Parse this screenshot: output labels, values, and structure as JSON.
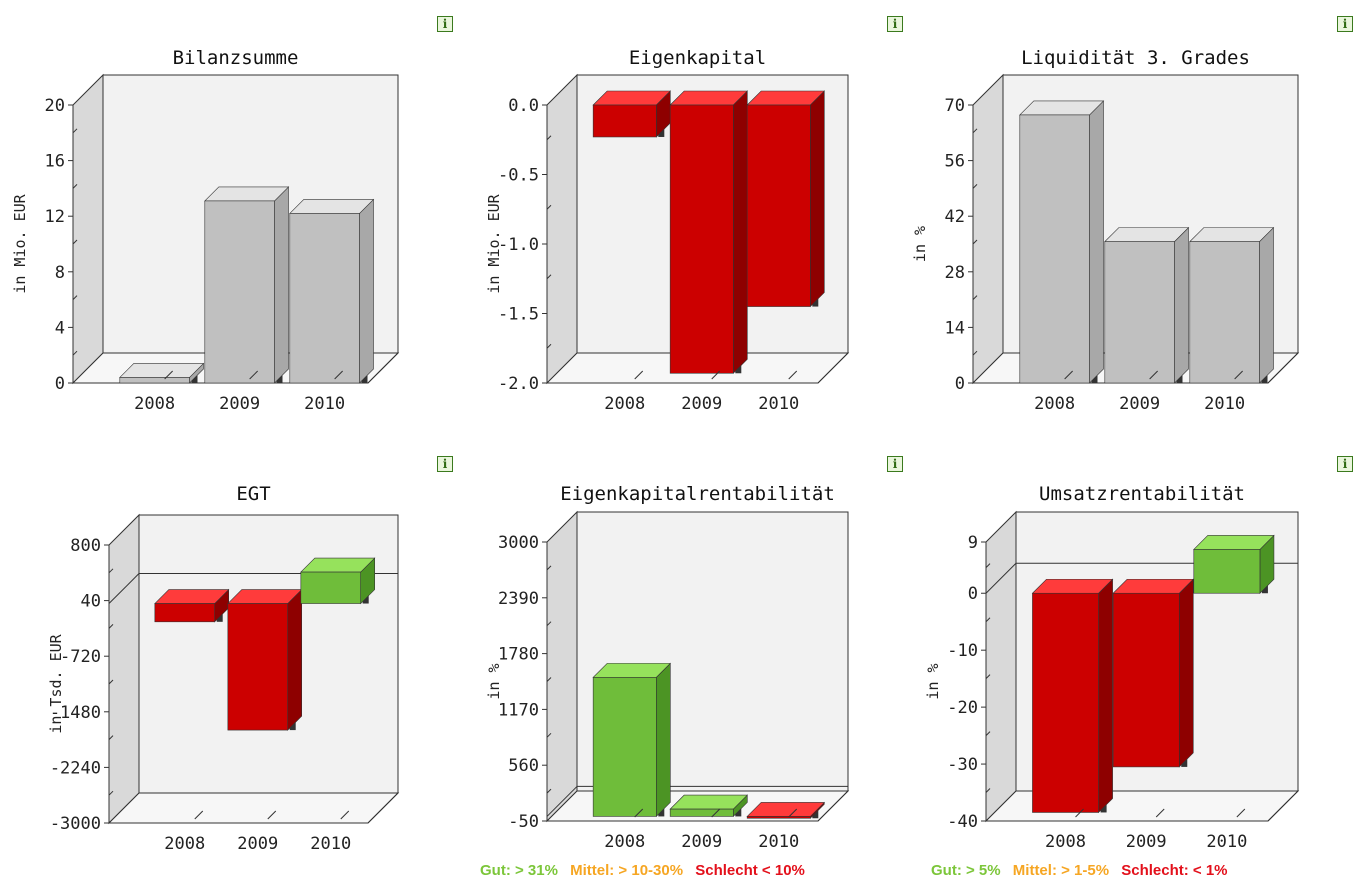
{
  "chart_data": [
    {
      "type": "bar",
      "title": "Bilanzsumme",
      "ylabel": "in Mio. EUR",
      "categories": [
        "2008",
        "2009",
        "2010"
      ],
      "values": [
        0.4,
        13.1,
        12.2
      ],
      "ylim": [
        0,
        20
      ],
      "yticks": [
        0,
        4,
        8,
        12,
        16,
        20
      ],
      "ytick_labels": [
        "0",
        "4",
        "8",
        "12",
        "16",
        "20"
      ],
      "bar_colors": [
        "gray",
        "gray",
        "gray"
      ]
    },
    {
      "type": "bar",
      "title": "Eigenkapital",
      "ylabel": "in Mio. EUR",
      "categories": [
        "2008",
        "2009",
        "2010"
      ],
      "values": [
        -0.23,
        -1.93,
        -1.45
      ],
      "ylim": [
        -2.0,
        0.0
      ],
      "yticks": [
        -2.0,
        -1.5,
        -1.0,
        -0.5,
        0.0
      ],
      "ytick_labels": [
        "-2.0",
        "-1.5",
        "-1.0",
        "-0.5",
        "0.0"
      ],
      "bar_colors": [
        "red",
        "red",
        "red"
      ]
    },
    {
      "type": "bar",
      "title": "Liquidität 3. Grades",
      "ylabel": "in %",
      "categories": [
        "2008",
        "2009",
        "2010"
      ],
      "values": [
        67.5,
        35.6,
        35.6
      ],
      "ylim": [
        0,
        70
      ],
      "yticks": [
        0,
        14,
        28,
        42,
        56,
        70
      ],
      "ytick_labels": [
        "0",
        "14",
        "28",
        "42",
        "56",
        "70"
      ],
      "bar_colors": [
        "gray",
        "gray",
        "gray"
      ]
    },
    {
      "type": "bar",
      "title": "EGT",
      "ylabel": "in Tsd. EUR",
      "categories": [
        "2008",
        "2009",
        "2010"
      ],
      "values": [
        -250,
        -1730,
        430
      ],
      "ylim": [
        -3000,
        800
      ],
      "yticks": [
        -3000,
        -2240,
        -1480,
        -720,
        40,
        800
      ],
      "ytick_labels": [
        "-3000",
        "-2240",
        "-1480",
        "-720",
        "40",
        "800"
      ],
      "bar_colors": [
        "red",
        "red",
        "green"
      ]
    },
    {
      "type": "bar",
      "title": "Eigenkapitalrentabilität",
      "ylabel": "in %",
      "categories": [
        "2008",
        "2009",
        "2010"
      ],
      "values": [
        1520,
        80,
        -20
      ],
      "ylim": [
        -50,
        3000
      ],
      "yticks": [
        -50,
        560,
        1170,
        1780,
        2390,
        3000
      ],
      "ytick_labels": [
        "-50",
        "560",
        "1170",
        "1780",
        "2390",
        "3000"
      ],
      "bar_colors": [
        "green",
        "green",
        "red"
      ]
    },
    {
      "type": "bar",
      "title": "Umsatzrentabilität",
      "ylabel": "in %",
      "categories": [
        "2008",
        "2009",
        "2010"
      ],
      "values": [
        -38.5,
        -30.5,
        7.7
      ],
      "ylim": [
        -40,
        9
      ],
      "yticks": [
        -40,
        -30,
        -20,
        -10,
        0,
        9
      ],
      "ytick_labels": [
        "-40",
        "-30",
        "-20",
        "-10",
        "0",
        "9"
      ],
      "bar_colors": [
        "red",
        "red",
        "green"
      ]
    }
  ],
  "colors": {
    "gray": {
      "front": "#c0c0c0",
      "top": "#e4e4e4",
      "side": "#a8a8a8"
    },
    "red": {
      "front": "#cc0000",
      "top": "#ff3b3b",
      "side": "#8e0000"
    },
    "green": {
      "front": "#6fbd3a",
      "top": "#96e25c",
      "side": "#4c9424"
    },
    "shadow": "#333333"
  },
  "info_label": "i",
  "legends": [
    {
      "good": "Gut: > 31%",
      "mid": "Mittel: > 10-30%",
      "bad": "Schlecht < 10%"
    },
    {
      "good": "Gut: > 5%",
      "mid": "Mittel: > 1-5%",
      "bad": "Schlecht: < 1%"
    }
  ]
}
